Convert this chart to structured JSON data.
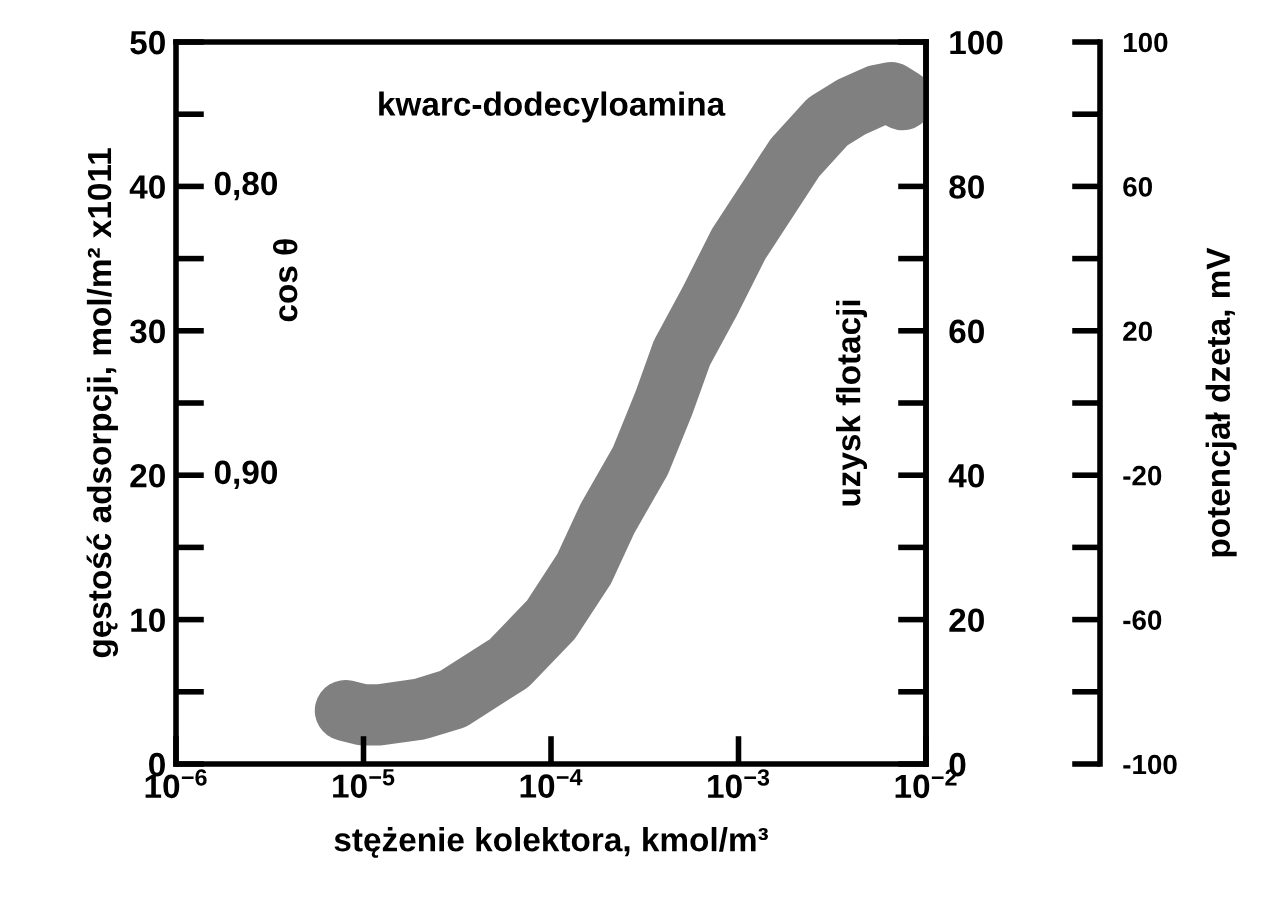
{
  "chart_data": {
    "type": "line",
    "log": "x",
    "grid": false,
    "legend": false,
    "line_style": "solid",
    "xlabel": "stężenie kolektora, kmol/m³",
    "ylabel": "gęstość adsorpcji, mol/m² x1011",
    "y2label": "uzysk flotacji",
    "y3label": "potencjał dzeta, mV",
    "annotations": [
      "kwarc-dodecyloamina",
      "cos θ",
      "0,80",
      "0,90"
    ],
    "xlim": [
      1e-06,
      0.01
    ],
    "xticks": [
      {
        "value": 1e-06,
        "label": "10$^{−6}$"
      },
      {
        "value": 1e-05,
        "label": "10$^{−5}$"
      },
      {
        "value": 0.0001,
        "label": "10$^{−4}$"
      },
      {
        "value": 0.001,
        "label": "10$^{−3}$"
      },
      {
        "value": 0.01,
        "label": "10$^{−2}$"
      }
    ],
    "ylim": [
      0,
      50
    ],
    "yticks": [
      0,
      {
        "value": 5,
        "label": null
      },
      10,
      {
        "value": 15,
        "label": null
      },
      20,
      {
        "value": 25,
        "label": null
      },
      30,
      {
        "value": 35,
        "label": null
      },
      40,
      {
        "value": 45,
        "label": null
      },
      50
    ],
    "y2lim": [
      0,
      100
    ],
    "y2ticks": [
      0,
      {
        "value": 10,
        "label": null
      },
      20,
      {
        "value": 30,
        "label": null
      },
      40,
      {
        "value": 50,
        "label": null
      },
      60,
      {
        "value": 70,
        "label": null
      },
      80,
      {
        "value": 90,
        "label": null
      },
      100
    ],
    "y3lim": [
      -100,
      100
    ],
    "y3ticks": [
      -100,
      {
        "value": -80,
        "label": null
      },
      -60,
      {
        "value": -40,
        "label": null
      },
      -20,
      {
        "value": 0,
        "label": null
      },
      20,
      {
        "value": 40,
        "label": null
      },
      60,
      {
        "value": 80,
        "label": null
      },
      100
    ],
    "series": [
      {
        "color": "#808080",
        "axis": "y",
        "x": [
          8e-06,
          1e-05,
          1.2e-05,
          2e-05,
          3e-05,
          6e-05,
          0.0001,
          0.00015,
          0.0002,
          0.0003,
          0.0004,
          0.0005,
          0.0007,
          0.001,
          0.0015,
          0.002,
          0.003,
          0.004,
          0.0055,
          0.0065,
          0.0075
        ],
        "values": [
          3.7,
          3.4,
          3.4,
          3.8,
          4.5,
          7,
          10,
          13.5,
          17,
          21,
          25,
          28.5,
          32,
          36,
          39.5,
          42,
          44.5,
          45.5,
          46.3,
          46.5,
          46
        ]
      }
    ]
  }
}
